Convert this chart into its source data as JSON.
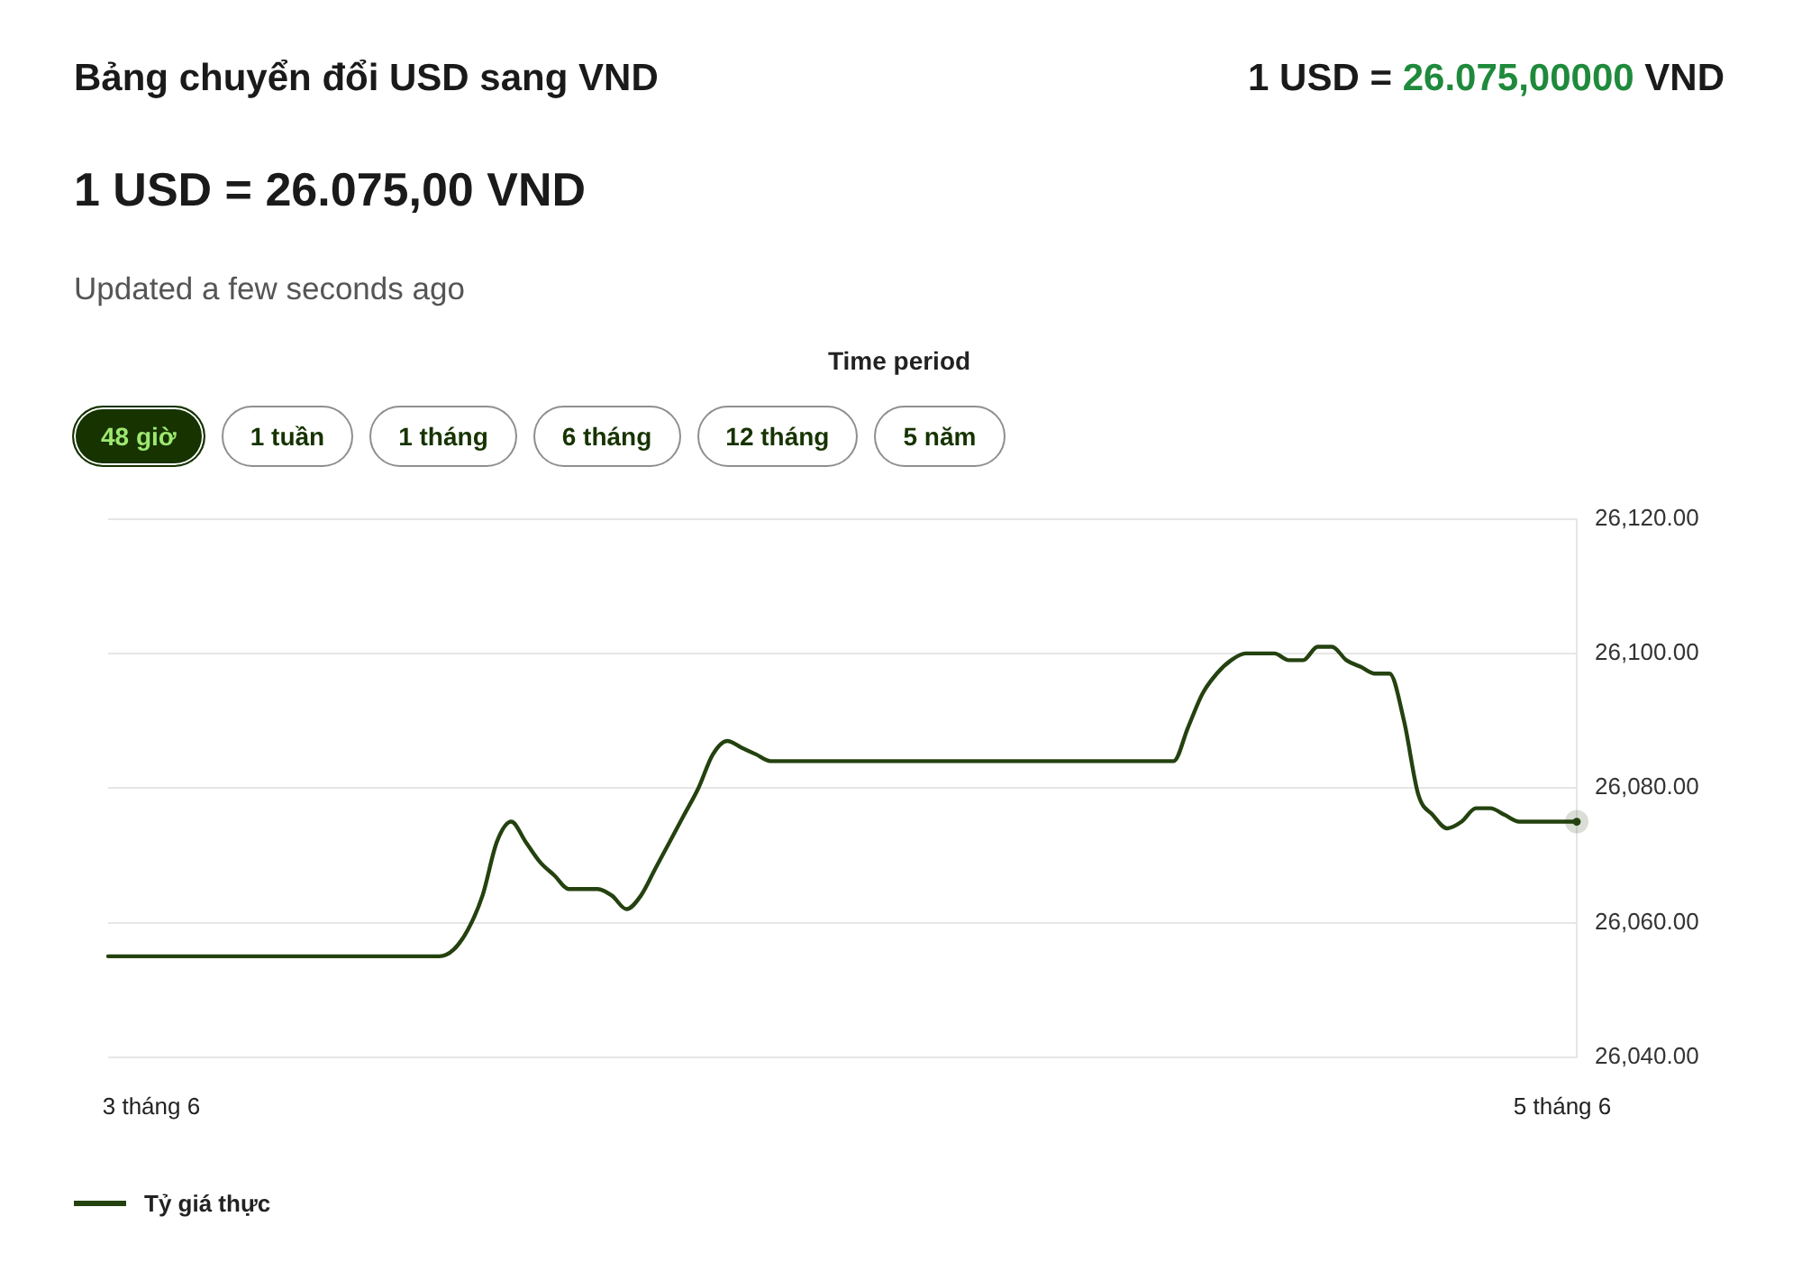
{
  "chart_data": {
    "type": "line",
    "title": "Bảng chuyển đổi USD sang VND",
    "subtitle": "1 USD = 26.075,00 VND",
    "annotations": [
      "1 USD = 26.075,00000 VND",
      "Updated a few seconds ago",
      "Time period",
      "48 giờ",
      "1 tuần",
      "1 tháng",
      "6 tháng",
      "12 tháng",
      "5 năm"
    ],
    "categories": [
      null,
      null,
      null,
      "3 tháng 6",
      null,
      null,
      null,
      null,
      null,
      null,
      null,
      null,
      null,
      null,
      null,
      null,
      null,
      null,
      null,
      null,
      null,
      null,
      null,
      null,
      null,
      null,
      null,
      null,
      null,
      null,
      null,
      null,
      null,
      null,
      null,
      null,
      null,
      null,
      null,
      null,
      null,
      null,
      null,
      null,
      null,
      null,
      null,
      null,
      null,
      null,
      null,
      null,
      null,
      null,
      null,
      null,
      null,
      null,
      null,
      null,
      null,
      null,
      null,
      null,
      null,
      null,
      null,
      null,
      null,
      null,
      null,
      null,
      null,
      null,
      null,
      null,
      null,
      null,
      null,
      null,
      null,
      null,
      null,
      null,
      null,
      null,
      null,
      null,
      null,
      null,
      null,
      null,
      null,
      null,
      null,
      null,
      null,
      null,
      null,
      null,
      null,
      "5 tháng 6",
      null
    ],
    "series": [
      {
        "name": "Tỷ giá thực",
        "color": "#24420f",
        "values": [
          26055,
          26055,
          26055,
          26055,
          26055,
          26055,
          26055,
          26055,
          26055,
          26055,
          26055,
          26055,
          26055,
          26055,
          26055,
          26055,
          26055,
          26055,
          26055,
          26055,
          26055,
          26055,
          26055,
          26055,
          26056,
          26059,
          26064,
          26072,
          26075,
          26072,
          26069,
          26067,
          26065,
          26065,
          26065,
          26064,
          26062,
          26064,
          26068,
          26072,
          26076,
          26080,
          26085,
          26087,
          26086,
          26085,
          26084,
          26084,
          26084,
          26084,
          26084,
          26084,
          26084,
          26084,
          26084,
          26084,
          26084,
          26084,
          26084,
          26084,
          26084,
          26084,
          26084,
          26084,
          26084,
          26084,
          26084,
          26084,
          26084,
          26084,
          26084,
          26084,
          26084,
          26084,
          26084,
          26089,
          26094,
          26097,
          26099,
          26100,
          26100,
          26100,
          26099,
          26099,
          26101,
          26101,
          26099,
          26098,
          26097,
          26097,
          26090,
          26079,
          26076,
          26074,
          26075,
          26077,
          26077,
          26076,
          26075,
          26075,
          26075,
          26075,
          26075
        ]
      }
    ],
    "ylim": [
      26040,
      26120
    ],
    "yticks": [
      {
        "value": 26040,
        "label": "26,040.00"
      },
      {
        "value": 26060,
        "label": "26,060.00"
      },
      {
        "value": 26080,
        "label": "26,080.00"
      },
      {
        "value": 26100,
        "label": "26,100.00"
      },
      {
        "value": 26120,
        "label": "26,120.00"
      }
    ],
    "grid": "y",
    "legend": "bottom left"
  }
}
